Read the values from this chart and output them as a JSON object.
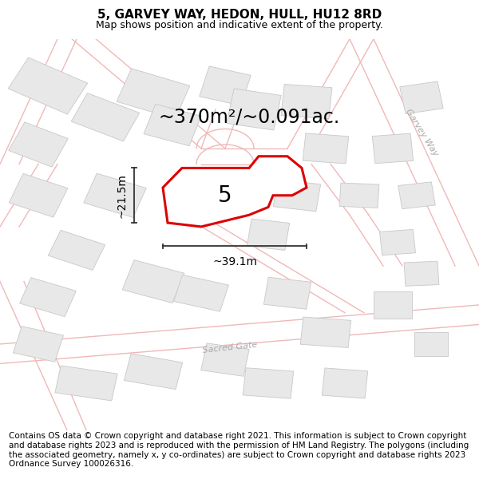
{
  "title": "5, GARVEY WAY, HEDON, HULL, HU12 8RD",
  "subtitle": "Map shows position and indicative extent of the property.",
  "area_label": "~370m²/~0.091ac.",
  "property_number": "5",
  "width_label": "~39.1m",
  "height_label": "~21.5m",
  "footer_text": "Contains OS data © Crown copyright and database right 2021. This information is subject to Crown copyright and database rights 2023 and is reproduced with the permission of HM Land Registry. The polygons (including the associated geometry, namely x, y co-ordinates) are subject to Crown copyright and database rights 2023 Ordnance Survey 100026316.",
  "bg_color": "#f8f7f7",
  "road_outline_color": "#f0b8b8",
  "building_face_color": "#e8e8e8",
  "building_edge_color": "#c8c8c8",
  "property_face_color": "#ffffff",
  "property_edge_color": "#dd0000",
  "dim_color": "#333333",
  "title_fontsize": 11,
  "subtitle_fontsize": 9,
  "area_fontsize": 17,
  "number_fontsize": 20,
  "dim_fontsize": 10,
  "footer_fontsize": 7.5,
  "road_label_color": "#aaaaaa",
  "garvey_way_label": "Garvey Way",
  "sacred_gate_label": "Sacred Gate"
}
